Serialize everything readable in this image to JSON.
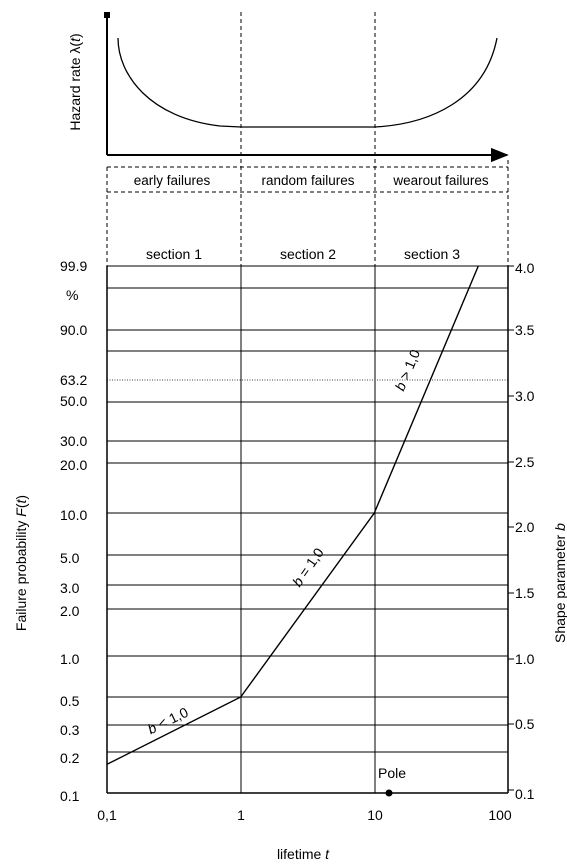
{
  "hazard_plot": {
    "ylabel_prefix": "Hazard rate ",
    "ylabel_symbol": "λ",
    "ylabel_open": "(",
    "ylabel_var": "t",
    "ylabel_close": ")",
    "phases": [
      "early failures",
      "random failures",
      "wearout failures"
    ]
  },
  "sections": [
    "section 1",
    "section 2",
    "section 3"
  ],
  "left_axis": {
    "label_prefix": "Failure probability ",
    "label_var": "F",
    "label_open": "(",
    "label_arg": "t",
    "label_close": ")",
    "unit": "%",
    "ticks": [
      "99.9",
      "90.0",
      "63.2",
      "50.0",
      "30.0",
      "20.0",
      "10.0",
      "5.0",
      "3.0",
      "2.0",
      "1.0",
      "0.5",
      "0.3",
      "0.2",
      "0.1"
    ]
  },
  "right_axis": {
    "label_prefix": "Shape parameter ",
    "label_var": "b",
    "ticks": [
      "4.0",
      "3.5",
      "3.0",
      "2.5",
      "2.0",
      "1.5",
      "1.0",
      "0.5",
      "0.1"
    ]
  },
  "x_axis": {
    "label_prefix": "lifetime ",
    "label_var": "t",
    "ticks": [
      "0,1",
      "1",
      "10",
      "100"
    ]
  },
  "curve_labels": [
    {
      "var": "b",
      "rel": " < 1,0"
    },
    {
      "var": "b",
      "rel": " = 1,0"
    },
    {
      "var": "b",
      "rel": " > 1,0"
    }
  ],
  "pole_label": "Pole",
  "chart_data": {
    "type": "line",
    "x_scale": "log",
    "xlim": [
      0.1,
      100
    ],
    "y_scale": "weibull",
    "y_unit": "%",
    "series": [
      {
        "x": [
          0.1,
          1,
          10,
          60
        ],
        "y": [
          0.17,
          0.5,
          10.0,
          99.9
        ]
      }
    ]
  }
}
